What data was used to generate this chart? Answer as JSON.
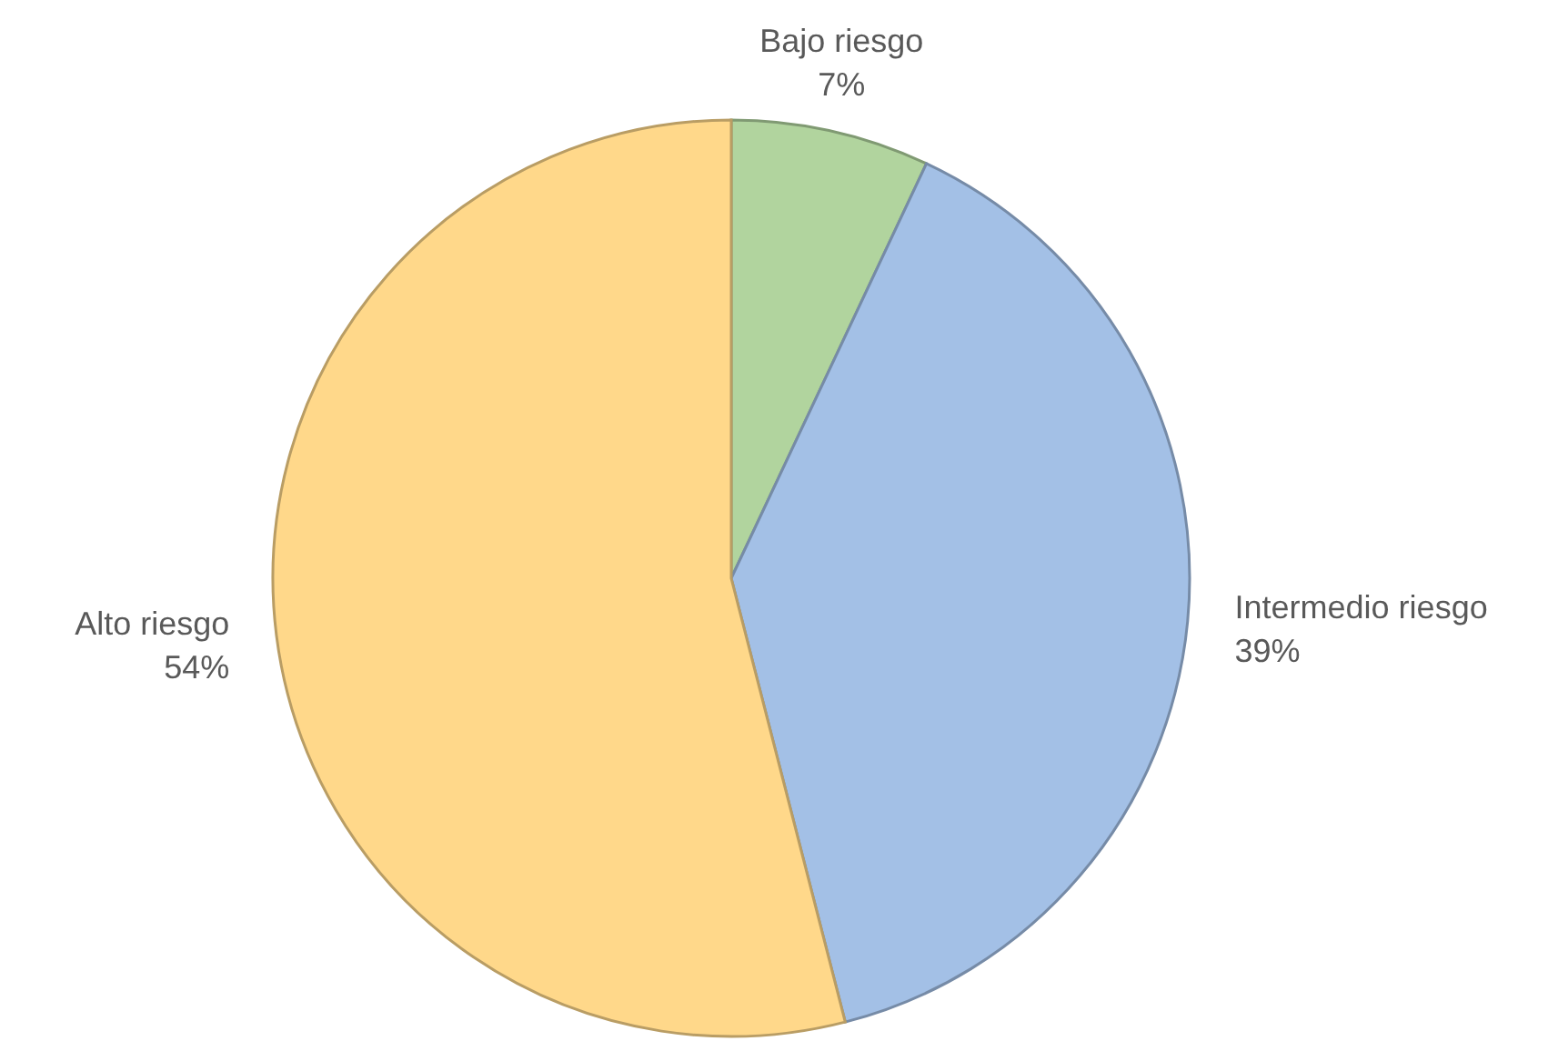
{
  "chart_data": {
    "type": "pie",
    "categories": [
      "Bajo riesgo",
      "Intermedio riesgo",
      "Alto riesgo"
    ],
    "values": [
      7,
      39,
      54
    ],
    "value_labels": [
      "7%",
      "39%",
      "54%"
    ],
    "colors": [
      "#b1d49e",
      "#a3c0e6",
      "#ffd88a"
    ]
  }
}
